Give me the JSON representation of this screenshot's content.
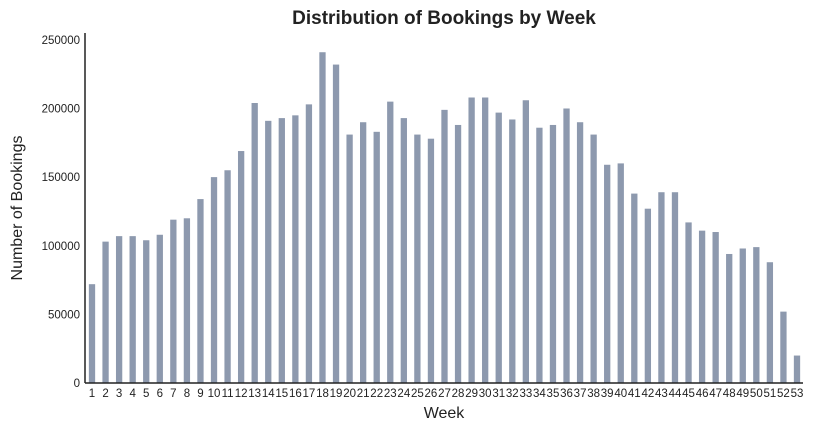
{
  "chart_data": {
    "type": "bar",
    "title": "Distribution of Bookings by Week",
    "xlabel": "Week",
    "ylabel": "Number of Bookings",
    "ylim": [
      0,
      255000
    ],
    "yticks": [
      "0",
      "50000",
      "100000",
      "150000",
      "200000",
      "250000"
    ],
    "grid": false,
    "bar_color": "#8d99ae",
    "categories": [
      "1",
      "2",
      "3",
      "4",
      "5",
      "6",
      "7",
      "8",
      "9",
      "10",
      "11",
      "12",
      "13",
      "14",
      "15",
      "16",
      "17",
      "18",
      "19",
      "20",
      "21",
      "22",
      "23",
      "24",
      "25",
      "26",
      "27",
      "28",
      "29",
      "30",
      "31",
      "32",
      "33",
      "34",
      "35",
      "36",
      "37",
      "38",
      "39",
      "40",
      "41",
      "42",
      "43",
      "44",
      "45",
      "46",
      "47",
      "48",
      "49",
      "50",
      "51",
      "52",
      "53"
    ],
    "values": [
      72000,
      103000,
      107000,
      107000,
      104000,
      108000,
      119000,
      120000,
      134000,
      150000,
      155000,
      169000,
      204000,
      191000,
      193000,
      195000,
      203000,
      241000,
      232000,
      181000,
      190000,
      183000,
      205000,
      193000,
      181000,
      178000,
      199000,
      188000,
      208000,
      208000,
      197000,
      192000,
      206000,
      186000,
      188000,
      200000,
      190000,
      181000,
      159000,
      160000,
      138000,
      127000,
      139000,
      139000,
      117000,
      111000,
      110000,
      94000,
      98000,
      99000,
      88000,
      52000,
      20000
    ]
  }
}
